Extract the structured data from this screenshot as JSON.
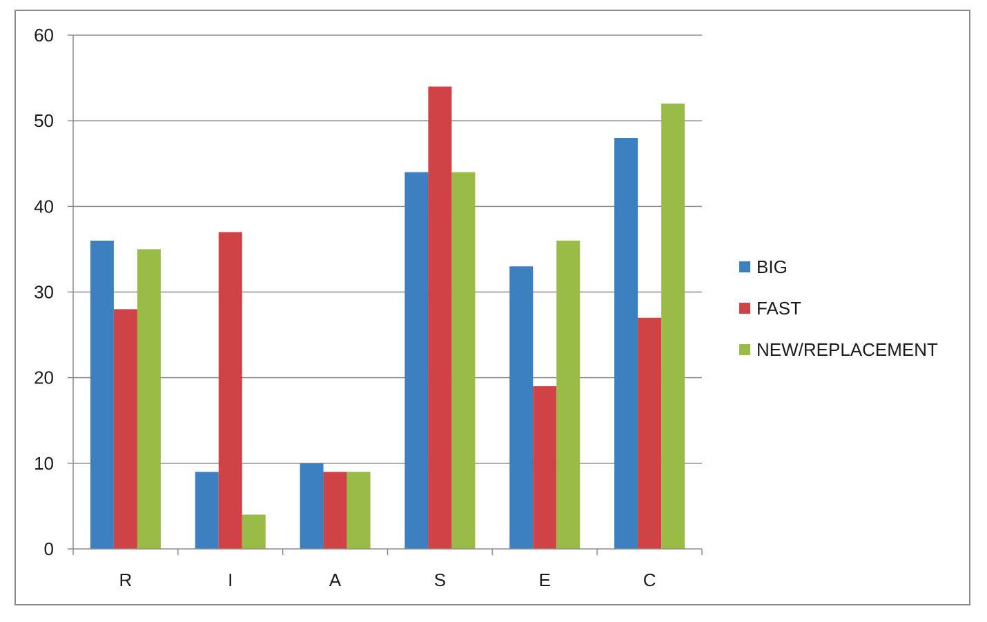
{
  "chart_data": {
    "type": "bar",
    "categories": [
      "R",
      "I",
      "A",
      "S",
      "E",
      "C"
    ],
    "series": [
      {
        "name": "BIG",
        "values": [
          36,
          9,
          10,
          44,
          33,
          48
        ]
      },
      {
        "name": "FAST",
        "values": [
          28,
          37,
          9,
          54,
          19,
          27
        ]
      },
      {
        "name": "NEW/REPLACEMENT",
        "values": [
          35,
          4,
          9,
          44,
          36,
          52
        ]
      }
    ],
    "colors": [
      "#3d80c0",
      "#cf4246",
      "#99bc46"
    ],
    "yticks": [
      "0",
      "10",
      "20",
      "30",
      "40",
      "50",
      "60"
    ],
    "ylim": [
      0,
      60
    ],
    "grid": true,
    "legend": "right"
  }
}
